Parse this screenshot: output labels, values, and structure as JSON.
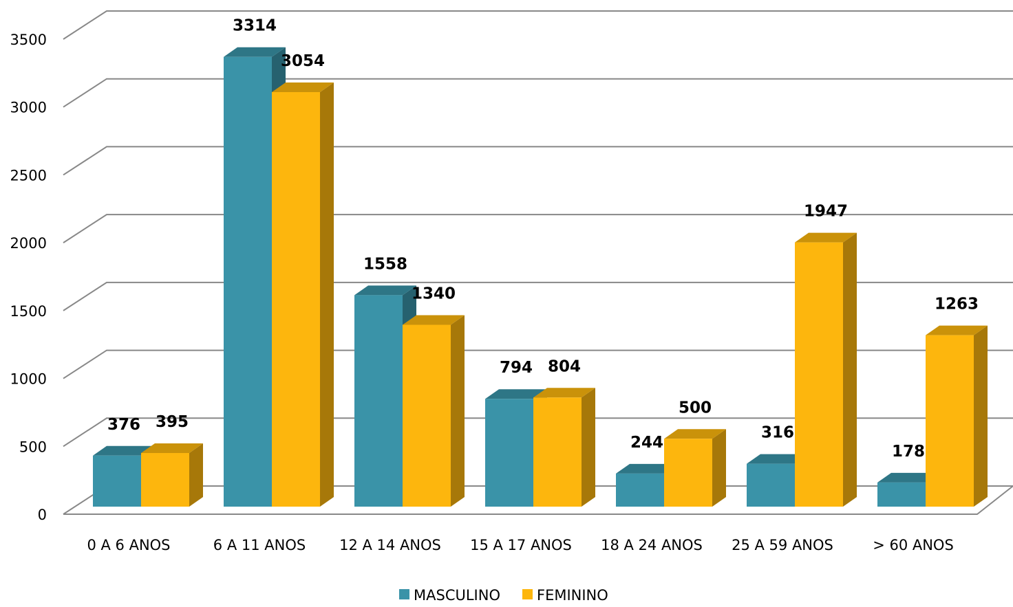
{
  "chart_data": {
    "type": "bar3d",
    "categories": [
      "0 A 6 ANOS",
      "6 A 11 ANOS",
      "12 A 14 ANOS",
      "15 A 17 ANOS",
      "18 A 24 ANOS",
      "25 A 59 ANOS",
      "> 60 ANOS"
    ],
    "series": [
      {
        "name": "MASCULINO",
        "color": "#3a93a8",
        "values": [
          376,
          3314,
          1558,
          794,
          244,
          316,
          178
        ]
      },
      {
        "name": "FEMININO",
        "color": "#fdb60d",
        "values": [
          395,
          3054,
          1340,
          804,
          500,
          1947,
          1263
        ]
      }
    ],
    "ylim": [
      0,
      3500
    ],
    "yticks": [
      0,
      500,
      1000,
      1500,
      2000,
      2500,
      3000,
      3500
    ],
    "grid": true,
    "legend": "bottom"
  }
}
